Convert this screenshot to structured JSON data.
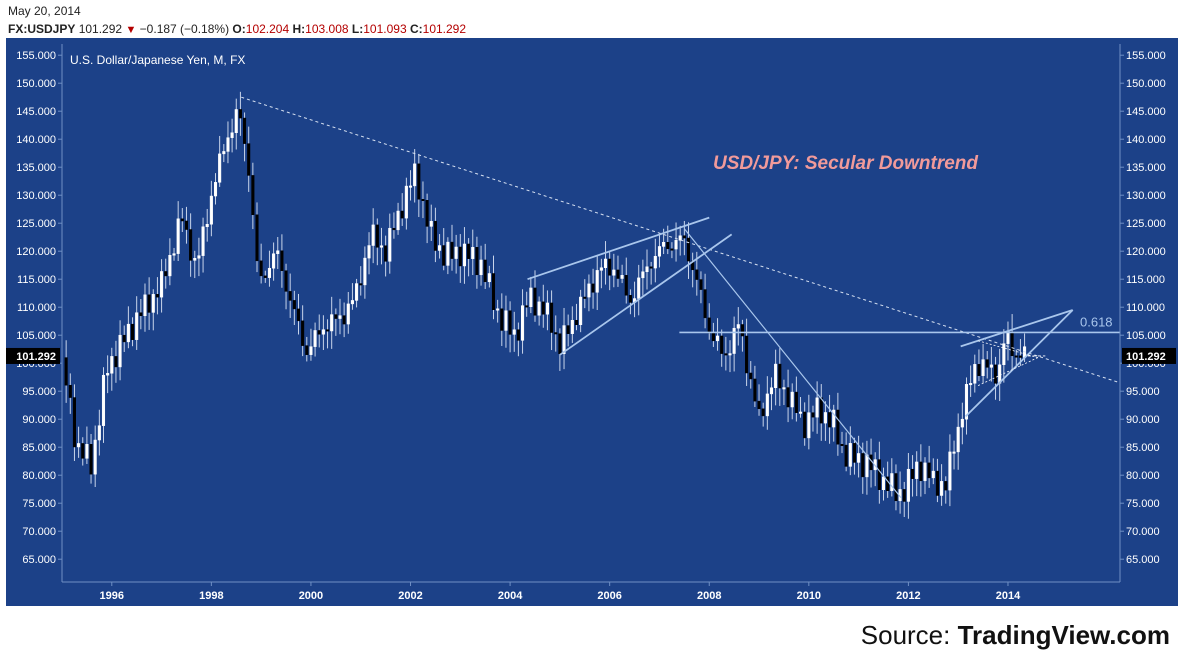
{
  "header": {
    "date": "May 20, 2014",
    "symbol": "FX:USDJPY",
    "last": "101.292",
    "change": "−0.187 (−0.18%)",
    "open_label": "O:",
    "open": "102.204",
    "high_label": "H:",
    "high": "103.008",
    "low_label": "L:",
    "low": "101.093",
    "close_label": "C:",
    "close": "101.292"
  },
  "source": {
    "prefix": "Source: ",
    "brand": "TradingView.com"
  },
  "colors": {
    "background": "#1c4188",
    "frame": "#6f8fc4",
    "up_candle": "#ffffff",
    "down_candle": "#000000",
    "trendline": "#a9c6ec",
    "secular_line": "#d8e2f2",
    "title_accent": "#f19a9a",
    "price_tag": "#000000"
  },
  "chart_data": {
    "type": "candlestick",
    "title": "U.S. Dollar/Japanese Yen, M, FX",
    "annotation": "USD/JPY: Secular Downtrend",
    "fib_label": "0.618",
    "current_price_label": "101.292",
    "current_price": 101.292,
    "ylim": [
      62.0,
      157.0
    ],
    "y_ticks": [
      65,
      70,
      75,
      80,
      85,
      90,
      95,
      100,
      105,
      110,
      115,
      120,
      125,
      130,
      135,
      140,
      145,
      150,
      155
    ],
    "y_tick_labels": [
      "65.000",
      "70.000",
      "75.000",
      "80.000",
      "85.000",
      "90.000",
      "95.000",
      "100.000",
      "105.000",
      "110.000",
      "115.000",
      "120.000",
      "125.000",
      "130.000",
      "135.000",
      "140.000",
      "145.000",
      "150.000",
      "155.000"
    ],
    "xlim": [
      1995.0,
      2016.25
    ],
    "x_ticks": [
      1996,
      1998,
      2000,
      2002,
      2004,
      2006,
      2008,
      2010,
      2012,
      2014
    ],
    "x_tick_labels": [
      "1996",
      "1998",
      "2000",
      "2002",
      "2004",
      "2006",
      "2008",
      "2010",
      "2012",
      "2014"
    ],
    "grid": false,
    "legend": "none",
    "anchors": [
      [
        1995.0,
        101
      ],
      [
        1995.3,
        85
      ],
      [
        1995.6,
        82
      ],
      [
        1995.9,
        99
      ],
      [
        1996.5,
        108
      ],
      [
        1997.0,
        114
      ],
      [
        1997.4,
        126
      ],
      [
        1997.7,
        117
      ],
      [
        1998.0,
        130
      ],
      [
        1998.3,
        140
      ],
      [
        1998.55,
        145
      ],
      [
        1998.75,
        135
      ],
      [
        1998.95,
        114
      ],
      [
        1999.3,
        120
      ],
      [
        1999.6,
        111
      ],
      [
        1999.9,
        102
      ],
      [
        2000.3,
        107
      ],
      [
        2000.6,
        108
      ],
      [
        2000.9,
        112
      ],
      [
        2001.2,
        123
      ],
      [
        2001.5,
        120
      ],
      [
        2001.9,
        130
      ],
      [
        2002.1,
        134
      ],
      [
        2002.4,
        123
      ],
      [
        2002.7,
        119
      ],
      [
        2003.0,
        120
      ],
      [
        2003.4,
        118
      ],
      [
        2003.8,
        108
      ],
      [
        2004.1,
        105
      ],
      [
        2004.4,
        112
      ],
      [
        2004.8,
        108
      ],
      [
        2005.0,
        103
      ],
      [
        2005.4,
        110
      ],
      [
        2005.8,
        117
      ],
      [
        2006.1,
        117
      ],
      [
        2006.4,
        111
      ],
      [
        2006.8,
        118
      ],
      [
        2007.1,
        121
      ],
      [
        2007.5,
        122
      ],
      [
        2007.8,
        113
      ],
      [
        2008.0,
        106
      ],
      [
        2008.3,
        101
      ],
      [
        2008.6,
        107
      ],
      [
        2008.8,
        98
      ],
      [
        2009.0,
        90
      ],
      [
        2009.3,
        98
      ],
      [
        2009.6,
        94
      ],
      [
        2009.9,
        89
      ],
      [
        2010.2,
        92
      ],
      [
        2010.5,
        89
      ],
      [
        2010.7,
        84
      ],
      [
        2010.9,
        83
      ],
      [
        2011.2,
        82
      ],
      [
        2011.5,
        79
      ],
      [
        2011.75,
        77
      ],
      [
        2011.9,
        77
      ],
      [
        2012.2,
        82
      ],
      [
        2012.5,
        79
      ],
      [
        2012.75,
        78
      ],
      [
        2012.9,
        85
      ],
      [
        2013.1,
        92
      ],
      [
        2013.35,
        100
      ],
      [
        2013.6,
        99
      ],
      [
        2013.8,
        98
      ],
      [
        2013.95,
        105
      ],
      [
        2014.1,
        102
      ],
      [
        2014.38,
        101.3
      ]
    ],
    "overlays": {
      "secular_downtrend": [
        [
          1998.6,
          147.5
        ],
        [
          2016.25,
          96.5
        ]
      ],
      "fib_level": [
        [
          2007.4,
          105.5
        ],
        [
          2016.25,
          105.5
        ]
      ],
      "wedge_2004_2007": [
        [
          [
            2004.35,
            115.0
          ],
          [
            2008.0,
            126.0
          ]
        ],
        [
          [
            2005.0,
            101.5
          ],
          [
            2008.45,
            123.0
          ]
        ]
      ],
      "breakdown_2007_2011": [
        [
          2007.5,
          124.0
        ],
        [
          2011.85,
          76.0
        ]
      ],
      "wedge_2013_2015": [
        [
          [
            2013.05,
            103.0
          ],
          [
            2015.3,
            109.5
          ]
        ],
        [
          [
            2013.15,
            90.5
          ],
          [
            2015.3,
            109.5
          ]
        ]
      ],
      "small_triangle_2013_2014": [
        [
          [
            2013.4,
            104.0
          ],
          [
            2014.6,
            101.0
          ]
        ],
        [
          [
            2013.4,
            96.0
          ],
          [
            2014.6,
            101.0
          ]
        ]
      ],
      "last_close_dash": [
        [
          2014.4,
          101.3
        ],
        [
          2014.75,
          101.3
        ]
      ]
    }
  }
}
